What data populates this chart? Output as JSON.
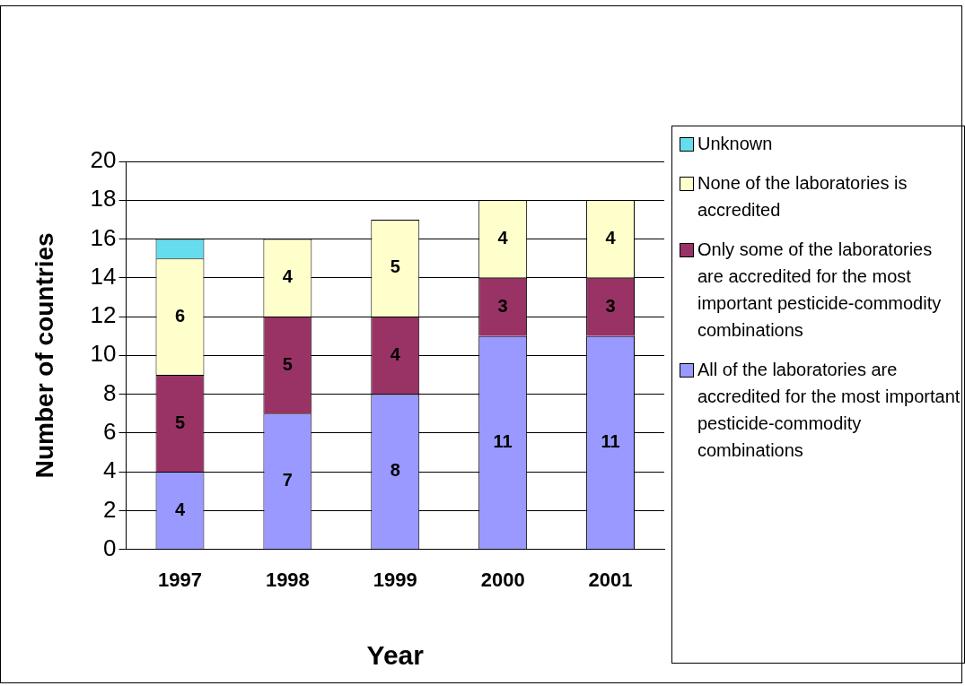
{
  "chart_data": {
    "type": "bar",
    "stacked": true,
    "xlabel": "Year",
    "ylabel": "Number of countries",
    "categories": [
      "1997",
      "1998",
      "1999",
      "2000",
      "2001"
    ],
    "ylim": [
      0,
      20
    ],
    "yticks": [
      0,
      2,
      4,
      6,
      8,
      10,
      12,
      14,
      16,
      18,
      20
    ],
    "grid": "y",
    "legend": "right",
    "series": [
      {
        "name": "All of the laboratories are accredited for the most important pesticide-commodity combinations",
        "color": "#9999ff",
        "values": [
          4,
          7,
          8,
          11,
          11
        ],
        "value_labels": [
          "4",
          "7",
          "8",
          "11",
          "11"
        ]
      },
      {
        "name": "Only some of the laboratories are accredited for the most important pesticide-commodity combinations",
        "color": "#993366",
        "values": [
          5,
          5,
          4,
          3,
          3
        ],
        "value_labels": [
          "5",
          "5",
          "4",
          "3",
          "3"
        ]
      },
      {
        "name": "None of the laboratories is accredited",
        "color": "#ffffcc",
        "values": [
          6,
          4,
          5,
          4,
          4
        ],
        "value_labels": [
          "6",
          "4",
          "5",
          "4",
          "4"
        ]
      },
      {
        "name": "Unknown",
        "color": "#66ddee",
        "values": [
          1,
          null,
          null,
          null,
          null
        ],
        "value_labels": [
          null,
          null,
          null,
          null,
          null
        ]
      }
    ]
  }
}
